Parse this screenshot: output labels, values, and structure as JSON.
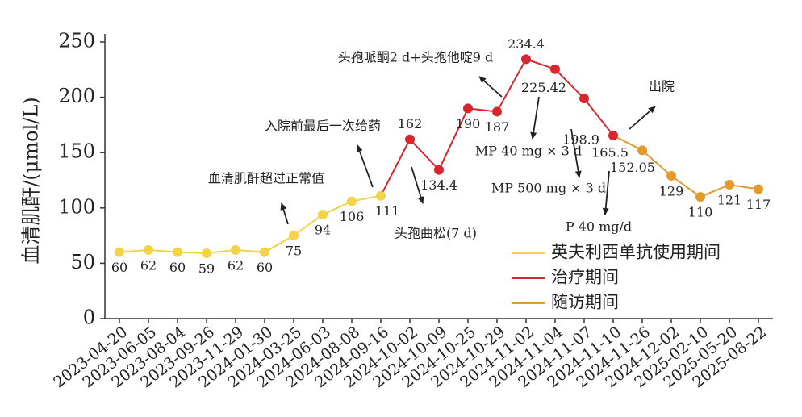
{
  "chart_data": {
    "type": "line",
    "y_label": "血清肌酐/(μmol/L)",
    "categories": [
      "2023-04-20",
      "2023-06-05",
      "2023-08-04",
      "2023-09-26",
      "2023-11-29",
      "2024-01-30",
      "2024-03-25",
      "2024-06-03",
      "2024-08-08",
      "2024-09-16",
      "2024-10-02",
      "2024-10-09",
      "2024-10-25",
      "2024-10-29",
      "2024-11-02",
      "2024-11-04",
      "2024-11-07",
      "2024-11-10",
      "2024-11-26",
      "2024-12-02",
      "2025-02-10",
      "2025-05-20",
      "2025-08-22"
    ],
    "series": [
      {
        "name": "英夫利西单抗使用期间",
        "color": "#f3d34a",
        "values": [
          60,
          62,
          60,
          59,
          62,
          60,
          75,
          94,
          106,
          111,
          null,
          null,
          null,
          null,
          null,
          null,
          null,
          null,
          null,
          null,
          null,
          null,
          null
        ]
      },
      {
        "name": "治疗期间",
        "color": "#d8262e",
        "values": [
          null,
          null,
          null,
          null,
          null,
          null,
          null,
          null,
          null,
          111,
          162,
          134.4,
          190,
          187,
          234.4,
          225.42,
          198.9,
          165.5,
          null,
          null,
          null,
          null,
          null
        ]
      },
      {
        "name": "随访期间",
        "color": "#e39a2a",
        "values": [
          null,
          null,
          null,
          null,
          null,
          null,
          null,
          null,
          null,
          null,
          null,
          null,
          null,
          null,
          null,
          null,
          null,
          165.5,
          152.05,
          129,
          110,
          121,
          117
        ]
      }
    ],
    "ylim": [
      0,
      250
    ],
    "yticks": [
      0,
      50,
      100,
      150,
      200,
      250
    ],
    "grid": false,
    "annotations": [
      "血清肌酐超过正常值",
      "入院前最后一次给药",
      "头孢曲松(7 d)",
      "头孢哌酮2 d+头孢他啶9 d",
      "MP 40 mg × 3 d",
      "MP 500 mg × 3 d",
      "P 40 mg/d",
      "出院"
    ],
    "legend": "lower right"
  }
}
